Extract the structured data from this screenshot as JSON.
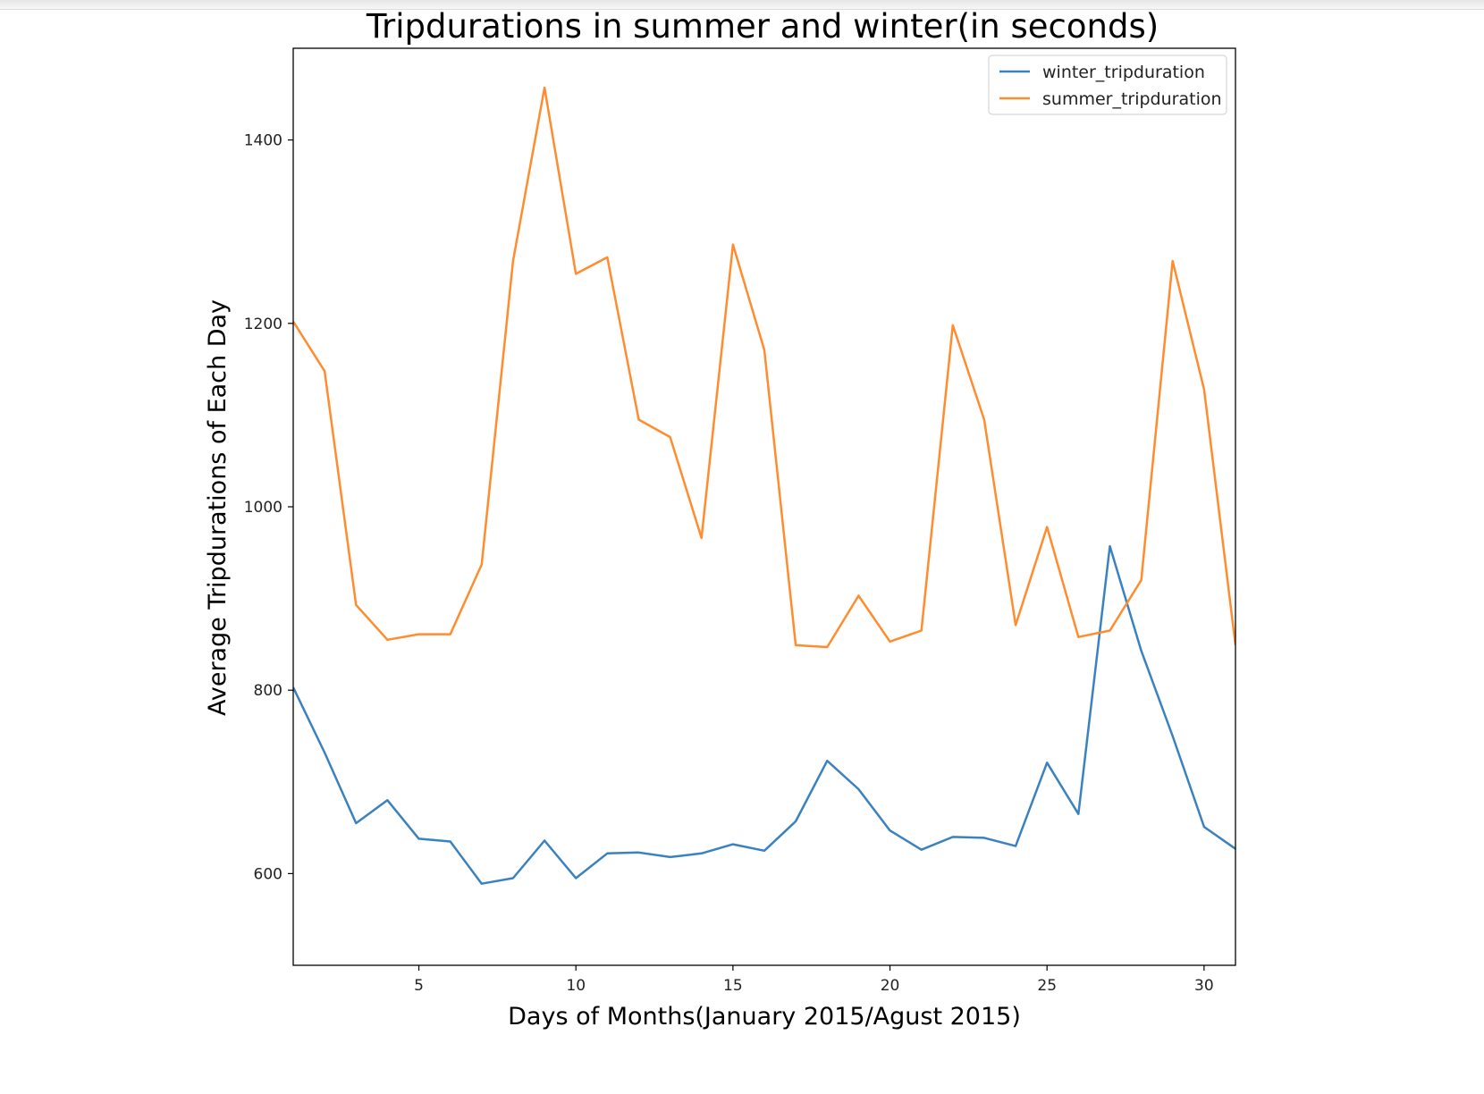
{
  "chart_data": {
    "type": "line",
    "title": "Tripdurations in summer and winter(in seconds)",
    "xlabel": "Days of Months(January 2015/Agust 2015)",
    "ylabel": "Average Tripdurations of Each Day",
    "xlim": [
      1,
      31
    ],
    "ylim": [
      500,
      1500
    ],
    "xticks": [
      5,
      10,
      15,
      20,
      25,
      30
    ],
    "yticks": [
      600,
      800,
      1000,
      1200,
      1400
    ],
    "grid": false,
    "legend_position": "top-right",
    "x": [
      1,
      2,
      3,
      4,
      5,
      6,
      7,
      8,
      9,
      10,
      11,
      12,
      13,
      14,
      15,
      16,
      17,
      18,
      19,
      20,
      21,
      22,
      23,
      24,
      25,
      26,
      27,
      28,
      29,
      30,
      31
    ],
    "series": [
      {
        "name": "winter_tripduration",
        "color": "#3a82bf",
        "values": [
          803,
          732,
          655,
          680,
          638,
          635,
          589,
          595,
          636,
          595,
          622,
          623,
          618,
          622,
          632,
          625,
          657,
          723,
          692,
          647,
          626,
          640,
          639,
          630,
          721,
          665,
          957,
          843,
          750,
          651,
          627
        ]
      },
      {
        "name": "summer_tripduration",
        "color": "#ff8c2e",
        "values": [
          1202,
          1148,
          893,
          855,
          861,
          861,
          937,
          1268,
          1457,
          1254,
          1272,
          1095,
          1076,
          966,
          1286,
          1171,
          849,
          847,
          903,
          853,
          865,
          1198,
          1095,
          871,
          978,
          858,
          865,
          920,
          1268,
          1128,
          849
        ]
      }
    ]
  }
}
